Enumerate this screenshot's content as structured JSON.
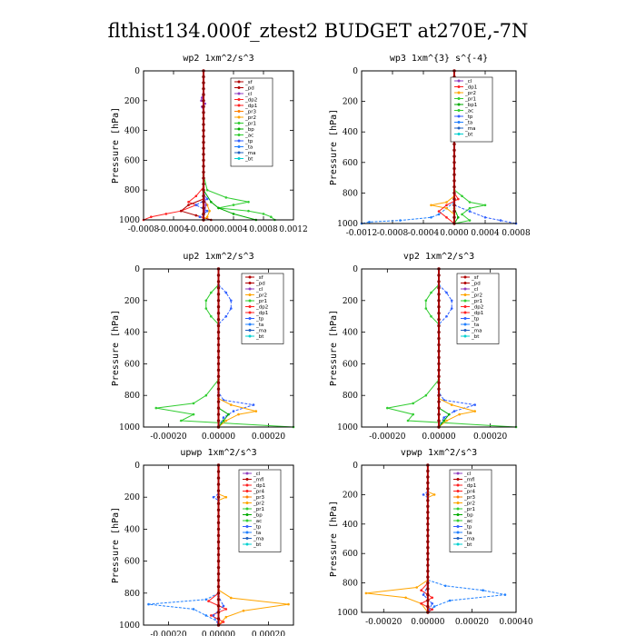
{
  "figure": {
    "title": "flthist134.000f_ztest2  BUDGET at270E,-7N"
  },
  "chart_data": [
    {
      "type": "line",
      "title": "wp2   1xm^2/s^3",
      "ylabel": "Pressure [hPa]",
      "xlim": [
        -0.0008,
        0.0012
      ],
      "ylim": [
        1000,
        0
      ],
      "xticks": [
        -0.0008,
        -0.0004,
        0.0,
        0.0004,
        0.0008,
        0.0012
      ],
      "xtick_labels": [
        "-0.0008",
        "-0.0004",
        "-0.0000",
        "0.0004",
        "0.0008",
        "0.0012"
      ],
      "yticks": [
        0,
        200,
        400,
        600,
        800,
        1000
      ],
      "legend": [
        "_sf",
        "_pd",
        "_cl",
        "_dp2",
        "_dp1",
        "_pr3",
        "_pr2",
        "_pr1",
        "_bp",
        "_ac",
        "_tp",
        "_ta",
        "_ma",
        "_bt"
      ],
      "series": [
        {
          "name": "_pr1",
          "color": "#32cd32",
          "pressure": [
            700,
            800,
            850,
            880,
            900,
            920,
            940,
            960,
            980,
            1000
          ],
          "values": [
            0.0,
            5e-05,
            0.0003,
            0.0006,
            0.0004,
            0.0002,
            0.0006,
            0.0008,
            0.0009,
            0.00095
          ]
        },
        {
          "name": "_bp",
          "color": "#00aa00",
          "pressure": [
            800,
            880,
            920,
            960,
            1000
          ],
          "values": [
            0.0,
            0.0001,
            0.0002,
            0.0004,
            0.0007
          ]
        },
        {
          "name": "_dp1",
          "color": "#ff2020",
          "pressure": [
            780,
            840,
            880,
            900,
            940,
            960,
            980,
            1000
          ],
          "values": [
            0.0,
            -0.0001,
            -0.0002,
            -0.0001,
            -0.0003,
            -0.0005,
            -0.0007,
            -0.0008
          ]
        },
        {
          "name": "_pd",
          "color": "#b00000",
          "pressure": [
            860,
            900,
            940,
            970,
            1000
          ],
          "values": [
            0.0,
            -0.0002,
            -0.0003,
            -0.0001,
            0.0001
          ]
        },
        {
          "name": "_tp",
          "color": "#3060ff",
          "pressure": [
            820,
            860,
            900,
            940,
            980,
            1000
          ],
          "values": [
            0.0,
            5e-05,
            -0.0001,
            5e-05,
            -5e-05,
            0.0
          ]
        },
        {
          "name": "_pr2",
          "color": "#ffa500",
          "pressure": [
            860,
            900,
            940,
            980,
            1000
          ],
          "values": [
            0.0,
            5e-05,
            8e-05,
            5e-05,
            0.0
          ]
        },
        {
          "name": "_cl",
          "color": "#9040c0",
          "pressure": [
            0,
            150,
            180,
            200,
            220,
            240,
            270,
            400,
            800,
            900,
            1000
          ],
          "values": [
            0.0,
            0.0,
            -2e-05,
            -3e-05,
            2e-05,
            -2e-05,
            0.0,
            0.0,
            0.0,
            3e-05,
            0.0
          ]
        },
        {
          "name": "_bt",
          "color": "#00d0d0",
          "pressure": [
            0,
            1000
          ],
          "values": [
            0.0,
            0.0
          ]
        }
      ]
    },
    {
      "type": "line",
      "title": "wp3   1xm^{3} s^{-4}",
      "ylabel": "Pressure [hPa]",
      "xlim": [
        -0.0012,
        0.0008
      ],
      "ylim": [
        1000,
        0
      ],
      "xticks": [
        -0.0012,
        -0.0008,
        -0.0004,
        0.0,
        0.0004,
        0.0008
      ],
      "xtick_labels": [
        "-0.0012",
        "-0.0008",
        "-0.0004",
        "0.0000",
        "0.0004",
        "0.0008"
      ],
      "yticks": [
        0,
        200,
        400,
        600,
        800,
        1000
      ],
      "legend": [
        "_cl",
        "_dp1",
        "_pr2",
        "_pr1",
        "_bp1",
        "_ac",
        "_tp",
        "_ta",
        "_ma",
        "_bt"
      ],
      "series": [
        {
          "name": "_ta",
          "color": "#2080ff",
          "pressure": [
            860,
            900,
            940,
            960,
            980,
            990,
            1000
          ],
          "values": [
            0.0,
            -0.0001,
            -0.0002,
            -0.0003,
            -0.0007,
            -0.0011,
            -0.0012
          ]
        },
        {
          "name": "_tp",
          "color": "#3060ff",
          "pressure": [
            880,
            920,
            960,
            980,
            1000
          ],
          "values": [
            0.0,
            0.0002,
            0.0004,
            0.0006,
            0.0008
          ]
        },
        {
          "name": "_ac",
          "color": "#32cd32",
          "pressure": [
            780,
            820,
            860,
            880,
            900,
            940,
            980,
            1000
          ],
          "values": [
            0.0,
            0.0001,
            0.0002,
            0.0004,
            0.0002,
            0.0001,
            0.0002,
            0.0
          ]
        },
        {
          "name": "_pr2",
          "color": "#ffa500",
          "pressure": [
            820,
            860,
            880,
            900,
            940,
            1000
          ],
          "values": [
            0.0,
            -0.0001,
            -0.0003,
            -0.0001,
            0.0,
            0.0
          ]
        },
        {
          "name": "_dp1",
          "color": "#ff2020",
          "pressure": [
            800,
            840,
            880,
            920,
            960,
            1000
          ],
          "values": [
            0.0,
            5e-05,
            -0.0001,
            -0.0002,
            -0.0001,
            0.0
          ]
        },
        {
          "name": "_bp1",
          "color": "#00aa00",
          "pressure": [
            900,
            960,
            1000
          ],
          "values": [
            0.0,
            5e-05,
            0.0
          ]
        },
        {
          "name": "_cl",
          "color": "#9040c0",
          "pressure": [
            0,
            1000
          ],
          "values": [
            0.0,
            0.0
          ]
        },
        {
          "name": "_bt",
          "color": "#00d0d0",
          "pressure": [
            0,
            1000
          ],
          "values": [
            0.0,
            0.0
          ]
        }
      ]
    },
    {
      "type": "line",
      "title": "up2   1xm^2/s^3",
      "ylabel": "Pressure [hPa]",
      "xlim": [
        -0.0003,
        0.0003
      ],
      "ylim": [
        1000,
        0
      ],
      "xticks": [
        -0.0002,
        0.0,
        0.0002
      ],
      "xtick_labels": [
        "-0.00020",
        "0.00000",
        "0.00020"
      ],
      "yticks": [
        0,
        200,
        400,
        600,
        800,
        1000
      ],
      "legend": [
        "_sf",
        "_pd",
        "_cl",
        "_pr2",
        "_pr1",
        "_dp2",
        "_dp1",
        "_tp",
        "_ta",
        "_ma",
        "_bt"
      ],
      "series": [
        {
          "name": "_dp1",
          "color": "#32cd32",
          "pressure": [
            100,
            150,
            200,
            250,
            300,
            350,
            700,
            800,
            850,
            880,
            920,
            960,
            1000
          ],
          "values": [
            0.0,
            -3e-05,
            -5e-05,
            -5e-05,
            -3e-05,
            0.0,
            0.0,
            -5e-05,
            -0.0001,
            -0.00025,
            -0.0001,
            -0.00015,
            0.0003
          ]
        },
        {
          "name": "_tp",
          "color": "#3060ff",
          "pressure": [
            100,
            150,
            200,
            250,
            300,
            350,
            780,
            830,
            860,
            900,
            940,
            1000
          ],
          "values": [
            0.0,
            3e-05,
            5e-05,
            5e-05,
            3e-05,
            0.0,
            0.0,
            2e-05,
            0.00014,
            6e-05,
            2e-05,
            0.0
          ]
        },
        {
          "name": "_pr2",
          "color": "#ffa500",
          "pressure": [
            820,
            860,
            900,
            920,
            960,
            1000
          ],
          "values": [
            0.0,
            5e-05,
            0.00015,
            8e-05,
            3e-05,
            0.0
          ]
        },
        {
          "name": "_pr1",
          "color": "#00aa00",
          "pressure": [
            880,
            920,
            960,
            1000
          ],
          "values": [
            0.0,
            4e-05,
            2e-05,
            0.0
          ]
        },
        {
          "name": "_sf",
          "color": "#b00000",
          "pressure": [
            0,
            1000
          ],
          "values": [
            0.0,
            0.0
          ]
        },
        {
          "name": "_bt",
          "color": "#00d0d0",
          "pressure": [
            0,
            1000
          ],
          "values": [
            0.0,
            0.0
          ]
        }
      ]
    },
    {
      "type": "line",
      "title": "vp2   1xm^2/s^3",
      "ylabel": "Pressure [hPa]",
      "xlim": [
        -0.0003,
        0.0003
      ],
      "ylim": [
        1000,
        0
      ],
      "xticks": [
        -0.0002,
        0.0,
        0.0002
      ],
      "xtick_labels": [
        "-0.00020",
        "0.00000",
        "0.00020"
      ],
      "yticks": [
        0,
        200,
        400,
        600,
        800,
        1000
      ],
      "legend": [
        "_sf",
        "_pd",
        "_cl",
        "_pr2",
        "_pr1",
        "_dp2",
        "_dp1",
        "_tp",
        "_ta",
        "_ma",
        "_bt"
      ],
      "series": [
        {
          "name": "_dp1",
          "color": "#32cd32",
          "pressure": [
            100,
            150,
            200,
            250,
            300,
            350,
            700,
            800,
            850,
            880,
            920,
            960,
            1000
          ],
          "values": [
            0.0,
            -3e-05,
            -5e-05,
            -5e-05,
            -3e-05,
            0.0,
            0.0,
            -5e-05,
            -0.0001,
            -0.0002,
            -0.0001,
            -0.00012,
            0.0003
          ]
        },
        {
          "name": "_tp",
          "color": "#3060ff",
          "pressure": [
            100,
            150,
            200,
            250,
            300,
            350,
            780,
            830,
            860,
            900,
            940,
            1000
          ],
          "values": [
            0.0,
            3e-05,
            5e-05,
            5e-05,
            3e-05,
            0.0,
            0.0,
            2e-05,
            0.00014,
            6e-05,
            2e-05,
            0.0
          ]
        },
        {
          "name": "_pr2",
          "color": "#ffa500",
          "pressure": [
            820,
            860,
            900,
            920,
            960,
            1000
          ],
          "values": [
            0.0,
            5e-05,
            0.00014,
            8e-05,
            3e-05,
            0.0
          ]
        },
        {
          "name": "_pr1",
          "color": "#00aa00",
          "pressure": [
            880,
            920,
            960,
            1000
          ],
          "values": [
            0.0,
            4e-05,
            2e-05,
            0.0
          ]
        },
        {
          "name": "_sf",
          "color": "#b00000",
          "pressure": [
            0,
            1000
          ],
          "values": [
            0.0,
            0.0
          ]
        },
        {
          "name": "_bt",
          "color": "#00d0d0",
          "pressure": [
            0,
            1000
          ],
          "values": [
            0.0,
            0.0
          ]
        }
      ]
    },
    {
      "type": "line",
      "title": "upwp   1xm^2/s^3",
      "ylabel": "Pressure [hPa]",
      "xlim": [
        -0.0003,
        0.0003
      ],
      "ylim": [
        1000,
        0
      ],
      "xticks": [
        -0.0002,
        0.0,
        0.0002
      ],
      "xtick_labels": [
        "-0.00020",
        "0.00000",
        "0.00020"
      ],
      "yticks": [
        0,
        200,
        400,
        600,
        800,
        1000
      ],
      "legend": [
        "_cl",
        "_mfl",
        "_dp1",
        "_pr4",
        "_pr3",
        "_pr2",
        "_pr1",
        "_bp",
        "_ac",
        "_tp",
        "_ta",
        "_ma",
        "_bt"
      ],
      "series": [
        {
          "name": "_ta",
          "color": "#2080ff",
          "pressure": [
            800,
            840,
            870,
            900,
            940,
            980,
            1000
          ],
          "values": [
            0.0,
            -5e-05,
            -0.00028,
            -0.0001,
            -5e-05,
            0.0,
            0.0
          ]
        },
        {
          "name": "_pr2",
          "color": "#ffa500",
          "pressure": [
            180,
            200,
            220,
            780,
            830,
            870,
            910,
            950,
            1000
          ],
          "values": [
            0.0,
            3e-05,
            0.0,
            0.0,
            5e-05,
            0.00028,
            0.0001,
            3e-05,
            0.0
          ]
        },
        {
          "name": "_dp1",
          "color": "#ff2020",
          "pressure": [
            800,
            850,
            900,
            940,
            980,
            1000
          ],
          "values": [
            0.0,
            -4e-05,
            3e-05,
            -3e-05,
            2e-05,
            0.0
          ]
        },
        {
          "name": "_tp",
          "color": "#3060ff",
          "pressure": [
            180,
            200,
            220,
            820,
            880,
            940,
            1000
          ],
          "values": [
            0.0,
            -2e-05,
            0.0,
            0.0,
            2e-05,
            -2e-05,
            0.0
          ]
        },
        {
          "name": "_cl",
          "color": "#9040c0",
          "pressure": [
            0,
            1000
          ],
          "values": [
            0.0,
            0.0
          ]
        },
        {
          "name": "_bt",
          "color": "#00d0d0",
          "pressure": [
            0,
            1000
          ],
          "values": [
            0.0,
            0.0
          ]
        }
      ]
    },
    {
      "type": "line",
      "title": "vpwp   1xm^2/s^3",
      "ylabel": "Pressure [hPa]",
      "xlim": [
        -0.0003,
        0.0004
      ],
      "ylim": [
        1000,
        0
      ],
      "xticks": [
        -0.0002,
        0.0,
        0.0002,
        0.0004
      ],
      "xtick_labels": [
        "-0.00020",
        "0.00000",
        "0.00020",
        "0.00040"
      ],
      "yticks": [
        0,
        200,
        400,
        600,
        800,
        1000
      ],
      "legend": [
        "_cl",
        "_mfl",
        "_dp1",
        "_pr4",
        "_pr3",
        "_pr2",
        "_pr1",
        "_bp",
        "_ac",
        "_tp",
        "_ta",
        "_ma",
        "_bt"
      ],
      "series": [
        {
          "name": "_ta",
          "color": "#2080ff",
          "pressure": [
            780,
            820,
            850,
            880,
            920,
            960,
            1000
          ],
          "values": [
            0.0,
            8e-05,
            0.00025,
            0.00035,
            0.0001,
            3e-05,
            0.0
          ]
        },
        {
          "name": "_pr2",
          "color": "#ffa500",
          "pressure": [
            180,
            200,
            220,
            780,
            830,
            870,
            900,
            940,
            1000
          ],
          "values": [
            0.0,
            3e-05,
            0.0,
            0.0,
            -5e-05,
            -0.00028,
            -0.0001,
            -3e-05,
            0.0
          ]
        },
        {
          "name": "_dp1",
          "color": "#ff2020",
          "pressure": [
            800,
            850,
            900,
            940,
            980,
            1000
          ],
          "values": [
            0.0,
            -3e-05,
            2e-05,
            -3e-05,
            2e-05,
            0.0
          ]
        },
        {
          "name": "_tp",
          "color": "#3060ff",
          "pressure": [
            180,
            200,
            220,
            820,
            880,
            940,
            1000
          ],
          "values": [
            0.0,
            -2e-05,
            0.0,
            0.0,
            -2e-05,
            2e-05,
            0.0
          ]
        },
        {
          "name": "_cl",
          "color": "#9040c0",
          "pressure": [
            0,
            1000
          ],
          "values": [
            0.0,
            0.0
          ]
        },
        {
          "name": "_bt",
          "color": "#00d0d0",
          "pressure": [
            0,
            1000
          ],
          "values": [
            0.0,
            0.0
          ]
        }
      ]
    }
  ]
}
